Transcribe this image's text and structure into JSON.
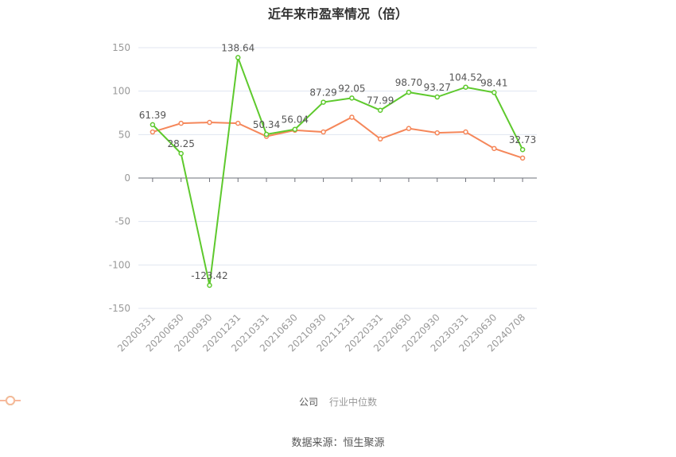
{
  "title": "近年来市盈率情况（倍）",
  "source": "数据来源：恒生聚源",
  "legend": [
    {
      "label": "公司",
      "color": "#5ec92d",
      "text_color": "#555555"
    },
    {
      "label": "行业中位数",
      "color": "#f5875a",
      "text_color": "#999999"
    }
  ],
  "chart_data": {
    "type": "line",
    "title": "近年来市盈率情况（倍）",
    "xlabel": "",
    "ylabel": "",
    "ylim": [
      -150,
      150
    ],
    "yticks": [
      150,
      100,
      50,
      0,
      -50,
      -100,
      -150
    ],
    "grid": true,
    "legend_position": "bottom",
    "categories": [
      "20200331",
      "20200630",
      "20200930",
      "20201231",
      "20210331",
      "20210630",
      "20210930",
      "20211231",
      "20220331",
      "20220630",
      "20220930",
      "20230331",
      "20230630",
      "20240708"
    ],
    "series": [
      {
        "name": "公司",
        "color": "#5ec92d",
        "labels": true,
        "values": [
          61.39,
          28.25,
          -123.42,
          138.64,
          50.34,
          56.04,
          87.29,
          92.05,
          77.99,
          98.7,
          93.27,
          104.52,
          98.41,
          32.73
        ]
      },
      {
        "name": "行业中位数",
        "color": "#f5875a",
        "labels": false,
        "values": [
          53,
          63,
          64,
          63,
          48,
          55,
          53,
          70,
          45,
          57,
          52,
          53,
          34,
          23
        ]
      }
    ]
  }
}
